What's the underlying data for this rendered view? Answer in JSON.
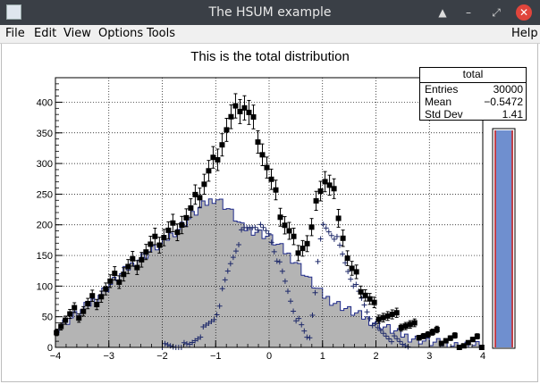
{
  "window": {
    "title": "The HSUM example",
    "buttons": [
      "minimize",
      "restore",
      "maximize",
      "close"
    ]
  },
  "menu": {
    "file": "File",
    "edit": "Edit",
    "view": "View",
    "options": "Options",
    "tools": "Tools",
    "help": "Help"
  },
  "stats": {
    "title": "total",
    "entries_label": "Entries",
    "entries": "30000",
    "mean_label": "Mean",
    "mean": "−0.5472",
    "std_label": "Std Dev",
    "std": "1.41"
  },
  "chart_data": {
    "type": "bar",
    "title": "This is the total distribution",
    "xlim": [
      -4,
      4
    ],
    "ylim": [
      0,
      440
    ],
    "xticks": [
      -4,
      -3,
      -2,
      -1,
      0,
      1,
      2,
      3,
      4
    ],
    "yticks": [
      0,
      50,
      100,
      150,
      200,
      250,
      300,
      350,
      400
    ],
    "grid": true,
    "series": [
      {
        "style": "grey filled step histogram",
        "x": [
          -4,
          -3.5,
          -3,
          -2.5,
          -2,
          -1.75,
          -1.5,
          -1.25,
          -1,
          -0.75,
          -0.5,
          -0.25,
          0,
          0.25,
          0.5,
          0.75,
          1,
          1.5,
          2,
          2.5,
          3,
          3.5,
          4
        ],
        "y": [
          30,
          60,
          100,
          140,
          170,
          190,
          210,
          230,
          245,
          225,
          195,
          190,
          180,
          160,
          140,
          110,
          85,
          60,
          40,
          20,
          8,
          3,
          1
        ]
      },
      {
        "style": "plus markers",
        "x": [
          -2,
          -1.5,
          -1,
          -0.75,
          -0.5,
          -0.25,
          0,
          0.25,
          0.5,
          0.75,
          1,
          1.25,
          1.5,
          2,
          2.5
        ],
        "y": [
          0,
          2,
          50,
          130,
          190,
          200,
          185,
          120,
          50,
          10,
          200,
          180,
          120,
          30,
          5
        ]
      },
      {
        "style": "black squares with error bars",
        "x": [
          -4,
          -3.5,
          -3,
          -2.5,
          -2,
          -1.5,
          -1,
          -0.75,
          -0.5,
          -0.25,
          0,
          0.25,
          0.5,
          0.75,
          1,
          1.25,
          1.5,
          2,
          2.5,
          3,
          3.5,
          4
        ],
        "y": [
          35,
          60,
          100,
          140,
          180,
          215,
          310,
          365,
          400,
          360,
          280,
          210,
          165,
          170,
          280,
          245,
          130,
          60,
          40,
          20,
          10,
          5
        ]
      }
    ]
  }
}
